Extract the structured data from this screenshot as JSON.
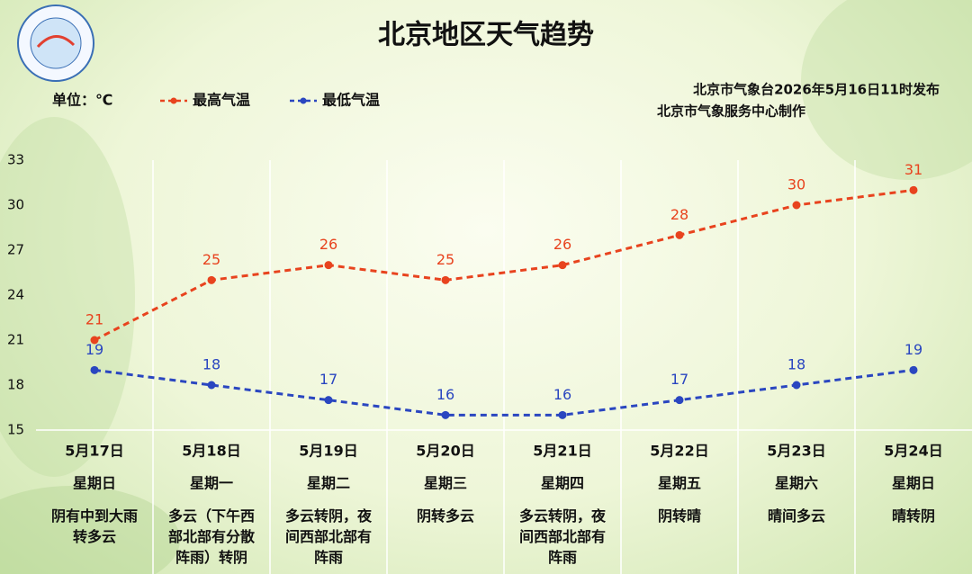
{
  "chart_data": {
    "type": "line",
    "title": "北京地区天气趋势",
    "unit": "单位：℃",
    "notes": [
      "北京市气象台2026年5月16日11时发布",
      "北京市气象服务中心制作"
    ],
    "categories": [
      "5月17日",
      "5月18日",
      "5月19日",
      "5月20日",
      "5月21日",
      "5月22日",
      "5月23日",
      "5月24日"
    ],
    "weekdays": [
      "星期日",
      "星期一",
      "星期二",
      "星期三",
      "星期四",
      "星期五",
      "星期六",
      "星期日"
    ],
    "weather": [
      "阴有中到大雨转多云",
      "多云（下午西部北部有分散阵雨）转阴",
      "多云转阴，夜间西部北部有阵雨",
      "阴转多云",
      "多云转阴，夜间西部北部有阵雨",
      "阴转晴",
      "晴间多云",
      "晴转阴"
    ],
    "series": [
      {
        "name": "最高气温",
        "color": "#e8431e",
        "values": [
          21,
          25,
          26,
          25,
          26,
          28,
          30,
          31
        ]
      },
      {
        "name": "最低气温",
        "color": "#2a46c0",
        "values": [
          19,
          18,
          17,
          16,
          16,
          17,
          18,
          19
        ]
      }
    ],
    "ylim": [
      15,
      33
    ],
    "yticks": [
      15,
      18,
      21,
      24,
      27,
      30,
      33
    ]
  }
}
